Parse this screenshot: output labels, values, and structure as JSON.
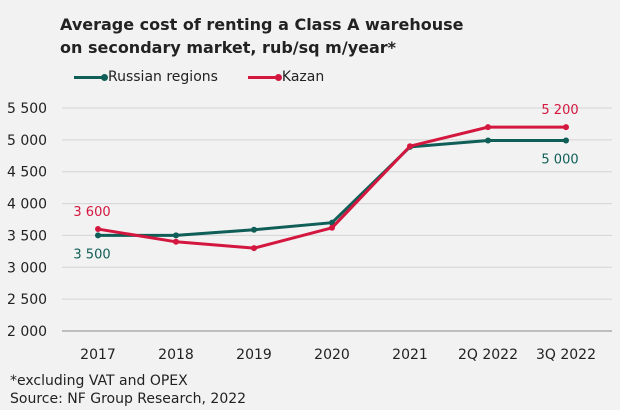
{
  "title_line1": "Average cost of renting a Class A warehouse",
  "title_line2": "on secondary market, rub/sq m/year*",
  "footnote": "*excluding VAT and OPEX",
  "source": "Source: NF Group Research, 2022",
  "colors": {
    "background": "#f2f2f2",
    "russian_regions": "#0f5e57",
    "kazan": "#d3173f",
    "gridline": "#d4d4d4",
    "axis": "#8a8a8a"
  },
  "chart_data": {
    "type": "line",
    "title": "Average cost of renting a Class A warehouse on secondary market, rub/sq m/year*",
    "xlabel": "",
    "ylabel": "",
    "categories": [
      "2017",
      "2018",
      "2019",
      "2020",
      "2021",
      "2Q 2022",
      "3Q 2022"
    ],
    "ylim": [
      2000,
      5500
    ],
    "yticks": [
      2000,
      2500,
      3000,
      3500,
      4000,
      4500,
      5000,
      5500
    ],
    "ytick_labels": [
      "2 000",
      "2 500",
      "3 000",
      "3 500",
      "4 000",
      "4 500",
      "5 000",
      "5 500"
    ],
    "grid": true,
    "legend_position": "top-left",
    "series": [
      {
        "name": "Russian regions",
        "color": "#0f5e57",
        "values": [
          3500,
          3500,
          3590,
          3700,
          4890,
          4990,
          4990
        ],
        "annotations": [
          {
            "index": 0,
            "text": "3 500",
            "side": "below"
          },
          {
            "index": 6,
            "text": "5 000",
            "side": "below"
          }
        ]
      },
      {
        "name": "Kazan",
        "color": "#d3173f",
        "values": [
          3600,
          3400,
          3300,
          3620,
          4900,
          5200,
          5200
        ],
        "annotations": [
          {
            "index": 0,
            "text": "3 600",
            "side": "above"
          },
          {
            "index": 6,
            "text": "5 200",
            "side": "above"
          }
        ]
      }
    ]
  }
}
